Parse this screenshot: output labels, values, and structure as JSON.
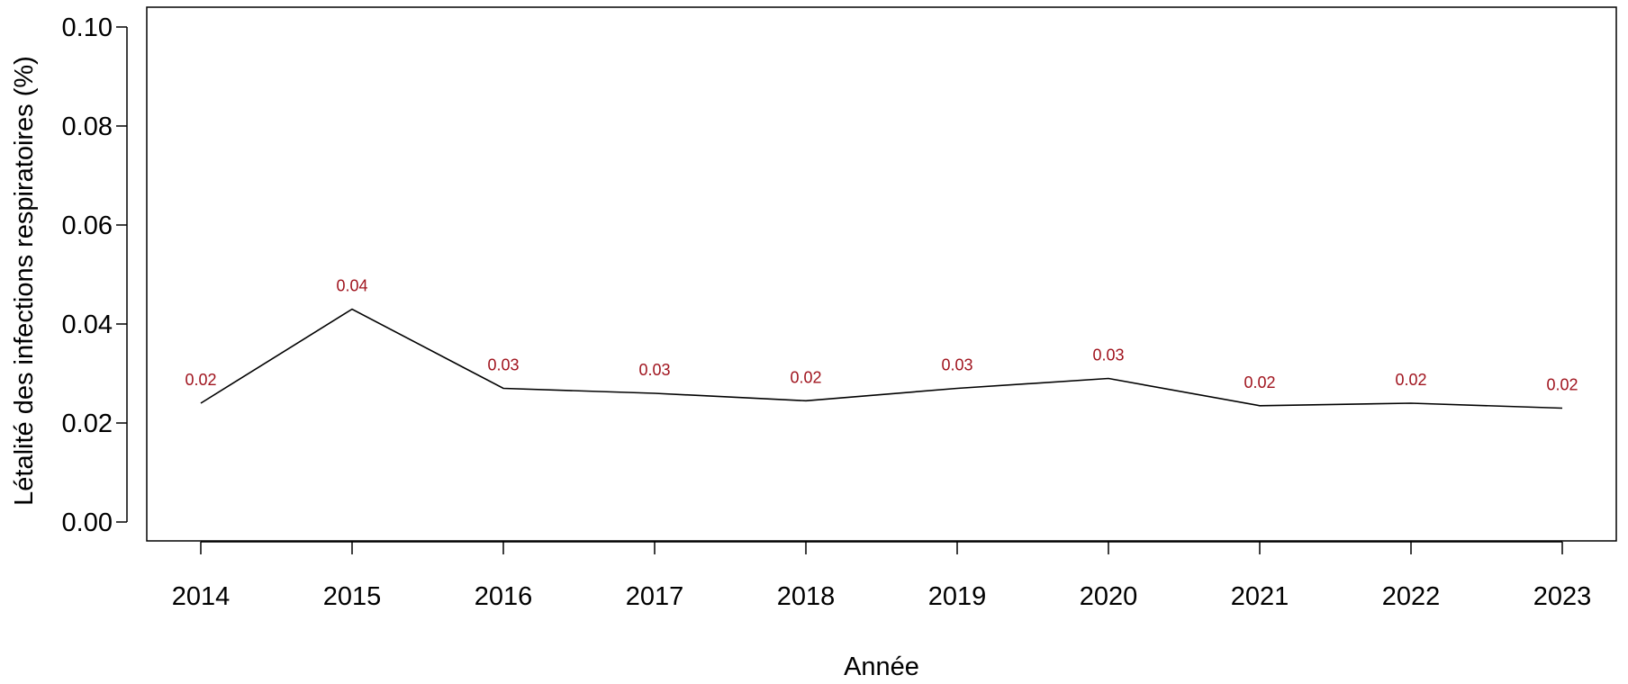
{
  "chart_data": {
    "type": "line",
    "title": "",
    "xlabel": "Année",
    "ylabel": "Létalité des infections respiratoires (%)",
    "x": [
      "2014",
      "2015",
      "2016",
      "2017",
      "2018",
      "2019",
      "2020",
      "2021",
      "2022",
      "2023"
    ],
    "values": [
      0.024,
      0.043,
      0.027,
      0.026,
      0.0245,
      0.027,
      0.029,
      0.0235,
      0.024,
      0.023
    ],
    "data_labels": [
      "0.02",
      "0.04",
      "0.03",
      "0.03",
      "0.02",
      "0.03",
      "0.03",
      "0.02",
      "0.02",
      "0.02"
    ],
    "ylim": [
      0,
      0.1
    ],
    "yticks": [
      "0.00",
      "0.02",
      "0.04",
      "0.06",
      "0.08",
      "0.10"
    ],
    "grid": false,
    "line_color": "#000000",
    "label_color": "#a0141e"
  }
}
